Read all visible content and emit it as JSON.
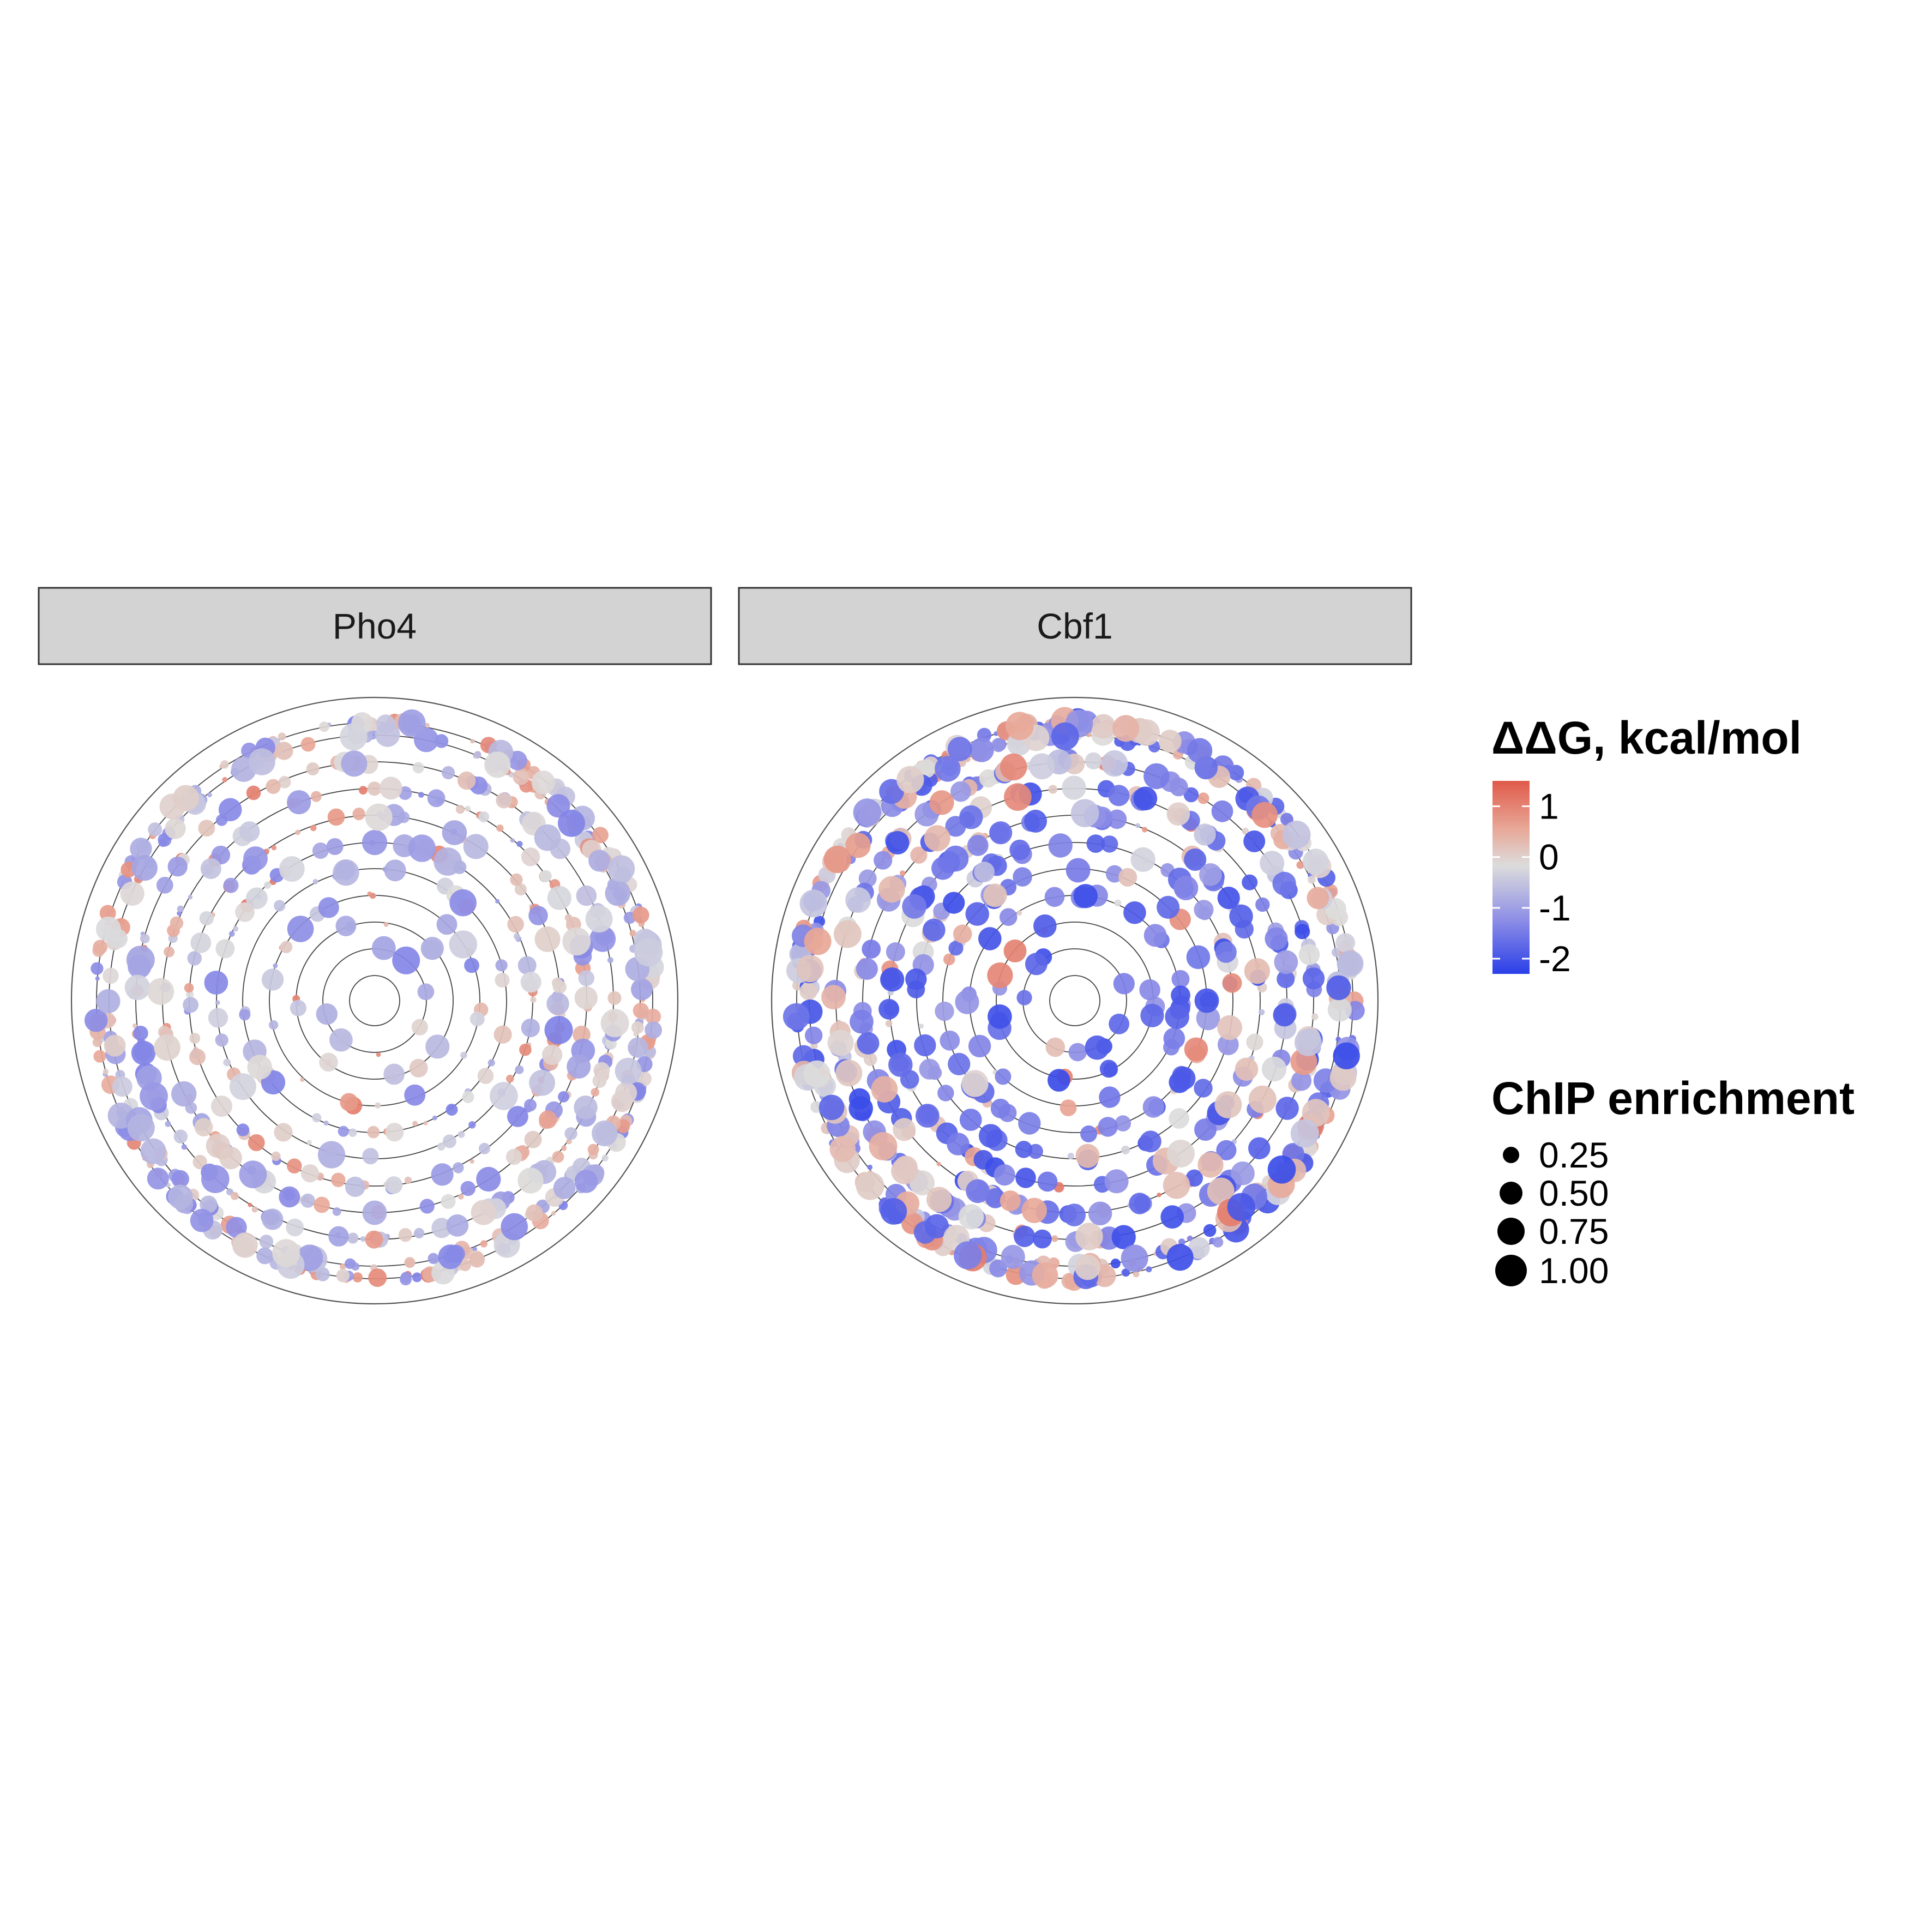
{
  "chart_data": [
    {
      "type": "scatter",
      "coordinate_system": "polar",
      "facet": "Pho4",
      "rings": 11,
      "grid": true,
      "color_range": [
        -2.3,
        1.5
      ],
      "seed": 7,
      "density": 1.0,
      "blue_bias": 0.0,
      "big_points": [
        {
          "ring": 8,
          "angle_deg": 70,
          "ddg": -0.1,
          "enrichment": 0.9
        },
        {
          "ring": 10,
          "angle_deg": 80,
          "ddg": -0.2,
          "enrichment": 1.0
        },
        {
          "ring": 7,
          "angle_deg": 215,
          "ddg": -0.8,
          "enrichment": 0.95
        },
        {
          "ring": 9,
          "angle_deg": 300,
          "ddg": -0.7,
          "enrichment": 0.8
        },
        {
          "ring": 6,
          "angle_deg": 320,
          "ddg": -0.9,
          "enrichment": 0.7
        },
        {
          "ring": 9,
          "angle_deg": 120,
          "ddg": -0.4,
          "enrichment": 0.8
        },
        {
          "ring": 7,
          "angle_deg": 180,
          "ddg": -0.6,
          "enrichment": 0.7
        },
        {
          "ring": 5,
          "angle_deg": 0,
          "ddg": -0.9,
          "enrichment": 0.75
        }
      ]
    },
    {
      "type": "scatter",
      "coordinate_system": "polar",
      "facet": "Cbf1",
      "rings": 11,
      "grid": true,
      "color_range": [
        -2.3,
        1.5
      ],
      "seed": 13,
      "density": 1.05,
      "blue_bias": 1.0,
      "big_points": [
        {
          "ring": 10,
          "angle_deg": 60,
          "ddg": -0.1,
          "enrichment": 0.8
        },
        {
          "ring": 9,
          "angle_deg": 120,
          "ddg": -0.3,
          "enrichment": 1.0
        },
        {
          "ring": 10,
          "angle_deg": 235,
          "ddg": 0.3,
          "enrichment": 0.8
        },
        {
          "ring": 4,
          "angle_deg": 45,
          "ddg": -1.6,
          "enrichment": 0.6
        },
        {
          "ring": 4,
          "angle_deg": 90,
          "ddg": -1.9,
          "enrichment": 0.7
        },
        {
          "ring": 4,
          "angle_deg": 230,
          "ddg": -1.7,
          "enrichment": 0.75
        },
        {
          "ring": 6,
          "angle_deg": 320,
          "ddg": -1.4,
          "enrichment": 0.8
        },
        {
          "ring": 9,
          "angle_deg": 200,
          "ddg": -1.2,
          "enrichment": 0.85
        },
        {
          "ring": 8,
          "angle_deg": 20,
          "ddg": -1.3,
          "enrichment": 0.8
        }
      ]
    }
  ],
  "legend": {
    "color_title": "ΔΔG, kcal/mol",
    "color_ticks": [
      {
        "value": 1,
        "label": "1"
      },
      {
        "value": 0,
        "label": "0"
      },
      {
        "value": -1,
        "label": "-1"
      },
      {
        "value": -2,
        "label": "-2"
      }
    ],
    "color_stops": [
      "#e05a4a",
      "#e8a898",
      "#dcdcdc",
      "#8e8ee6",
      "#2a3fe8"
    ],
    "size_title": "ChIP enrichment",
    "size_entries": [
      {
        "value": 0.25,
        "label": "0.25"
      },
      {
        "value": 0.5,
        "label": "0.50"
      },
      {
        "value": 0.75,
        "label": "0.75"
      },
      {
        "value": 1.0,
        "label": "1.00"
      }
    ]
  }
}
